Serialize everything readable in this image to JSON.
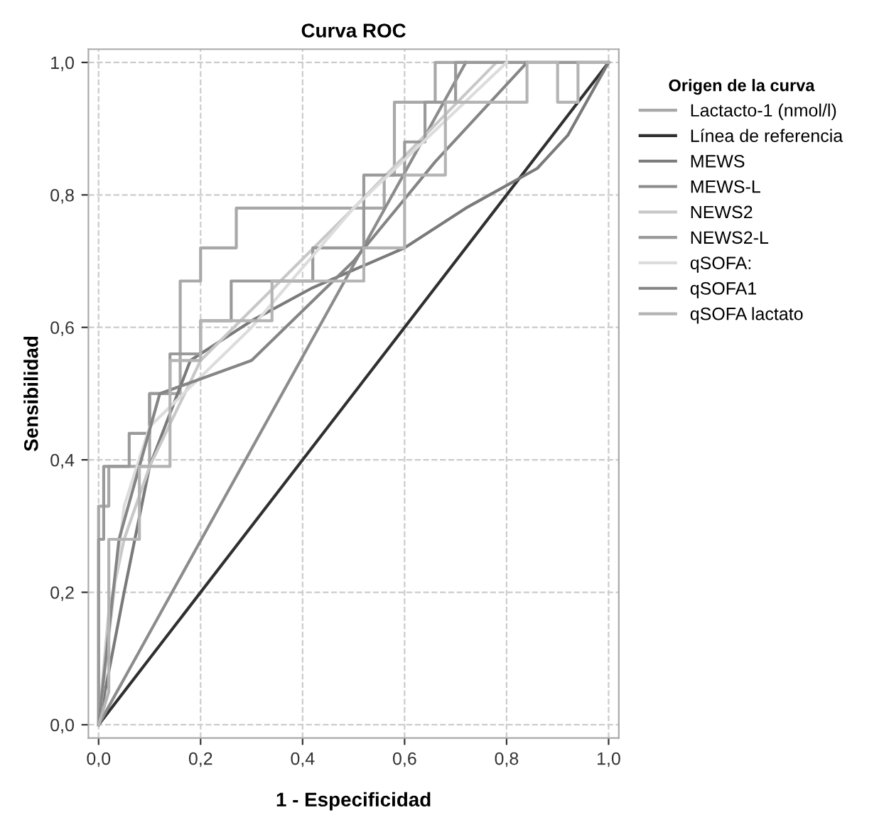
{
  "chart_data": {
    "type": "line",
    "title": "Curva ROC",
    "xlabel": "1 - Especificidad",
    "ylabel": "Sensibilidad",
    "legend_title": "Origen de la curva",
    "legend": "right",
    "grid": true,
    "line_style": "solid",
    "xlim": [
      -0.02,
      1.02
    ],
    "ylim": [
      -0.02,
      1.02
    ],
    "xticks": [
      {
        "value": 0,
        "label": "0,0"
      },
      {
        "value": 0.2,
        "label": "0,2"
      },
      {
        "value": 0.4,
        "label": "0,4"
      },
      {
        "value": 0.6,
        "label": "0,6"
      },
      {
        "value": 0.8,
        "label": "0,8"
      },
      {
        "value": 1,
        "label": "1,0"
      }
    ],
    "yticks": [
      {
        "value": 0,
        "label": "0,0"
      },
      {
        "value": 0.2,
        "label": "0,2"
      },
      {
        "value": 0.4,
        "label": "0,4"
      },
      {
        "value": 0.6,
        "label": "0,6"
      },
      {
        "value": 0.8,
        "label": "0,8"
      },
      {
        "value": 1,
        "label": "1,0"
      }
    ],
    "series": [
      {
        "name": "Lactacto-1 (nmol/l)",
        "color": "#a8a8a8",
        "x": [
          0,
          0,
          0.02,
          0.02,
          0.1,
          0.1,
          0.16,
          0.16,
          0.2,
          0.2,
          0.27,
          0.27,
          0.56,
          0.56,
          0.58,
          0.58,
          0.66,
          0.66,
          1
        ],
        "values": [
          0,
          0.33,
          0.33,
          0.39,
          0.39,
          0.5,
          0.5,
          0.67,
          0.67,
          0.72,
          0.72,
          0.78,
          0.78,
          0.83,
          0.83,
          0.94,
          0.94,
          1,
          1
        ]
      },
      {
        "name": "Línea de referencia",
        "color": "#303030",
        "x": [
          0,
          1
        ],
        "values": [
          0,
          1
        ]
      },
      {
        "name": "MEWS",
        "color": "#7a7a7a",
        "x": [
          0,
          0.05,
          0.1,
          0.18,
          0.3,
          0.42,
          0.6,
          0.72,
          0.86,
          0.92,
          1
        ],
        "values": [
          0,
          0.2,
          0.39,
          0.55,
          0.61,
          0.66,
          0.72,
          0.78,
          0.84,
          0.89,
          1
        ]
      },
      {
        "name": "MEWS-L",
        "color": "#8c8c8c",
        "x": [
          0,
          0.72
        ],
        "values": [
          0,
          1
        ]
      },
      {
        "name": "NEWS2",
        "color": "#c8c8c8",
        "x": [
          0,
          0.02,
          0.05,
          0.1,
          0.2,
          0.5,
          0.78
        ],
        "values": [
          0,
          0.17,
          0.28,
          0.39,
          0.55,
          0.78,
          1
        ]
      },
      {
        "name": "NEWS2-L",
        "color": "#9a9a9a",
        "x": [
          0,
          0,
          0.01,
          0.01,
          0.04,
          0.04,
          0.06,
          0.06,
          0.1,
          0.1,
          0.14,
          0.14,
          0.2,
          0.2,
          0.26,
          0.26,
          0.42,
          0.42,
          0.52,
          0.52,
          0.6,
          0.6,
          0.64,
          0.64,
          0.7,
          0.7,
          1
        ],
        "values": [
          0,
          0.28,
          0.28,
          0.39,
          0.39,
          0.39,
          0.39,
          0.44,
          0.44,
          0.5,
          0.5,
          0.56,
          0.56,
          0.61,
          0.61,
          0.67,
          0.67,
          0.72,
          0.72,
          0.83,
          0.83,
          0.88,
          0.88,
          0.94,
          0.94,
          1,
          1
        ]
      },
      {
        "name": "qSOFA:",
        "color": "#dcdcdc",
        "x": [
          0,
          0.05,
          0.1,
          0.3,
          0.5,
          0.8
        ],
        "values": [
          0,
          0.33,
          0.45,
          0.6,
          0.78,
          1
        ]
      },
      {
        "name": "qSOFA1",
        "color": "#858585",
        "x": [
          0,
          0.04,
          0.12,
          0.3,
          0.5,
          0.66,
          0.84
        ],
        "values": [
          0,
          0.28,
          0.5,
          0.55,
          0.7,
          0.85,
          1
        ]
      },
      {
        "name": "qSOFA lactato",
        "color": "#b4b4b4",
        "x": [
          0,
          0.02,
          0.02,
          0.08,
          0.08,
          0.14,
          0.14,
          0.2,
          0.2,
          0.34,
          0.34,
          0.52,
          0.52,
          0.6,
          0.6,
          0.68,
          0.68,
          0.84,
          0.84,
          0.9,
          0.9,
          0.94,
          0.94,
          1
        ],
        "values": [
          0,
          0.05,
          0.28,
          0.28,
          0.39,
          0.39,
          0.55,
          0.55,
          0.61,
          0.61,
          0.67,
          0.67,
          0.72,
          0.72,
          0.83,
          0.83,
          0.94,
          0.94,
          1,
          1,
          0.94,
          0.94,
          1,
          1
        ]
      }
    ]
  }
}
